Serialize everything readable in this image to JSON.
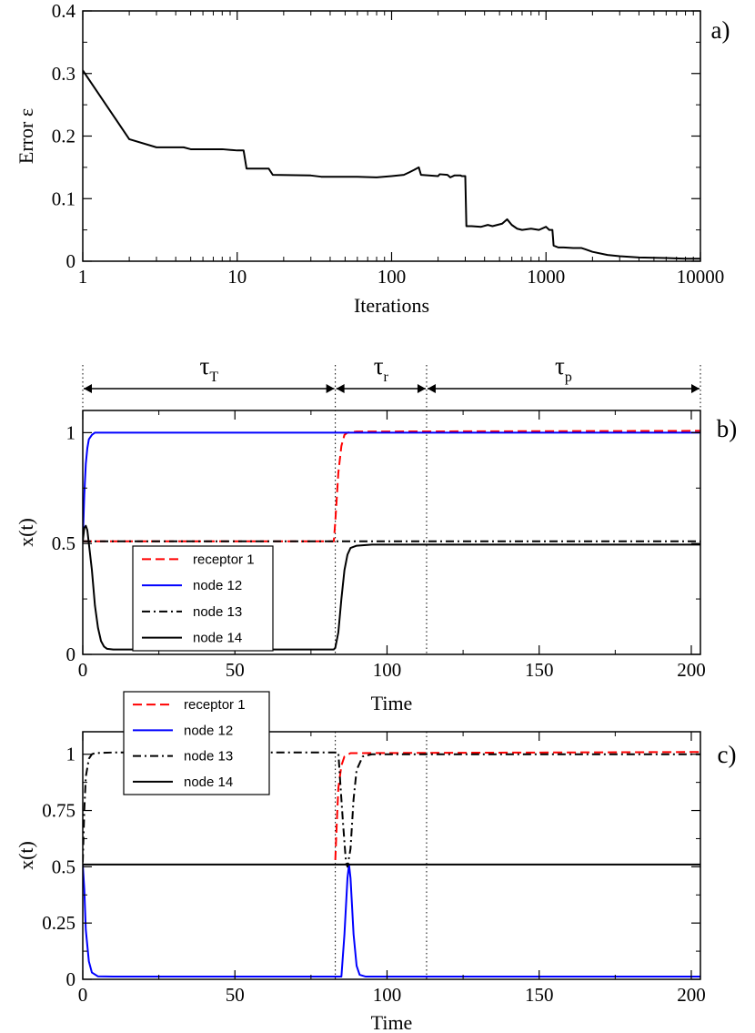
{
  "chart_data": [
    {
      "id": "a",
      "type": "line",
      "panel_label": "a)",
      "xscale": "log",
      "xlim": [
        1,
        10000
      ],
      "ylim": [
        0,
        0.4
      ],
      "xlabel": "Iterations",
      "ylabel": "Error ε",
      "xticks": [
        1,
        10,
        100,
        1000,
        10000
      ],
      "xtick_labels": [
        "1",
        "10",
        "100",
        "1000",
        "10000"
      ],
      "yticks": [
        0,
        0.1,
        0.2,
        0.3,
        0.4
      ],
      "ytick_labels": [
        "0",
        "0.1",
        "0.2",
        "0.3",
        "0.4"
      ],
      "series": [
        {
          "name": "error",
          "color": "#000000",
          "dash": "solid",
          "points": [
            [
              1,
              0.305
            ],
            [
              2,
              0.195
            ],
            [
              3,
              0.182
            ],
            [
              4.5,
              0.182
            ],
            [
              5,
              0.179
            ],
            [
              8,
              0.179
            ],
            [
              10,
              0.177
            ],
            [
              11,
              0.177
            ],
            [
              11.5,
              0.148
            ],
            [
              16,
              0.148
            ],
            [
              17,
              0.138
            ],
            [
              30,
              0.137
            ],
            [
              35,
              0.135
            ],
            [
              60,
              0.135
            ],
            [
              80,
              0.134
            ],
            [
              100,
              0.136
            ],
            [
              120,
              0.138
            ],
            [
              130,
              0.142
            ],
            [
              140,
              0.146
            ],
            [
              150,
              0.15
            ],
            [
              155,
              0.138
            ],
            [
              200,
              0.136
            ],
            [
              205,
              0.139
            ],
            [
              230,
              0.138
            ],
            [
              240,
              0.134
            ],
            [
              255,
              0.137
            ],
            [
              280,
              0.137
            ],
            [
              285,
              0.136
            ],
            [
              300,
              0.136
            ],
            [
              305,
              0.056
            ],
            [
              330,
              0.056
            ],
            [
              380,
              0.055
            ],
            [
              420,
              0.058
            ],
            [
              450,
              0.056
            ],
            [
              520,
              0.06
            ],
            [
              560,
              0.067
            ],
            [
              600,
              0.058
            ],
            [
              650,
              0.052
            ],
            [
              700,
              0.05
            ],
            [
              800,
              0.052
            ],
            [
              900,
              0.05
            ],
            [
              1000,
              0.055
            ],
            [
              1050,
              0.05
            ],
            [
              1100,
              0.05
            ],
            [
              1120,
              0.025
            ],
            [
              1200,
              0.022
            ],
            [
              1300,
              0.022
            ],
            [
              1500,
              0.021
            ],
            [
              1700,
              0.021
            ],
            [
              1800,
              0.019
            ],
            [
              2000,
              0.015
            ],
            [
              2500,
              0.01
            ],
            [
              3000,
              0.008
            ],
            [
              4000,
              0.006
            ],
            [
              6000,
              0.005
            ],
            [
              8000,
              0.004
            ],
            [
              10000,
              0.004
            ]
          ]
        }
      ]
    },
    {
      "id": "b",
      "type": "line",
      "panel_label": "b)",
      "xlim": [
        0,
        203
      ],
      "ylim": [
        0,
        1.1
      ],
      "xlabel": "Time",
      "ylabel": "x(t)",
      "xticks": [
        0,
        50,
        100,
        150,
        200
      ],
      "xtick_labels": [
        "0",
        "50",
        "100",
        "150",
        "200"
      ],
      "yticks": [
        0,
        0.5,
        1
      ],
      "ytick_labels": [
        "0",
        "0.5",
        "1"
      ],
      "vlines": [
        0,
        83,
        113,
        203
      ],
      "periods": [
        {
          "from": 0,
          "to": 83,
          "symbol": "τ",
          "sub": "T"
        },
        {
          "from": 83,
          "to": 113,
          "symbol": "τ",
          "sub": "r"
        },
        {
          "from": 113,
          "to": 203,
          "symbol": "τ",
          "sub": "p"
        }
      ],
      "legend": [
        "receptor 1",
        "node 12",
        "node 13",
        "node 14"
      ],
      "series": [
        {
          "name": "receptor 1",
          "color": "#ff0000",
          "dash": "dashed",
          "points": [
            [
              0,
              0.51
            ],
            [
              82.5,
              0.51
            ],
            [
              83,
              0.6
            ],
            [
              84,
              0.82
            ],
            [
              85,
              0.94
            ],
            [
              86,
              0.99
            ],
            [
              87,
              1.0
            ],
            [
              90,
              1.005
            ],
            [
              203,
              1.008
            ]
          ]
        },
        {
          "name": "node 12",
          "color": "#0000ff",
          "dash": "solid",
          "points": [
            [
              0,
              0.51
            ],
            [
              0.5,
              0.72
            ],
            [
              1,
              0.86
            ],
            [
              1.5,
              0.93
            ],
            [
              2,
              0.97
            ],
            [
              3,
              0.99
            ],
            [
              4,
              1.0
            ],
            [
              10,
              1.0
            ],
            [
              203,
              1.0
            ]
          ]
        },
        {
          "name": "node 13",
          "color": "#000000",
          "dash": "dashdot",
          "points": [
            [
              0,
              0.51
            ],
            [
              203,
              0.51
            ]
          ]
        },
        {
          "name": "node 14",
          "color": "#000000",
          "dash": "solid",
          "points": [
            [
              0,
              0.51
            ],
            [
              0.5,
              0.57
            ],
            [
              1,
              0.58
            ],
            [
              1.5,
              0.56
            ],
            [
              2,
              0.5
            ],
            [
              3,
              0.38
            ],
            [
              4,
              0.22
            ],
            [
              5,
              0.12
            ],
            [
              6,
              0.06
            ],
            [
              7,
              0.035
            ],
            [
              8,
              0.025
            ],
            [
              10,
              0.022
            ],
            [
              82.5,
              0.022
            ],
            [
              83,
              0.03
            ],
            [
              84,
              0.1
            ],
            [
              85,
              0.25
            ],
            [
              86,
              0.38
            ],
            [
              87,
              0.45
            ],
            [
              88,
              0.48
            ],
            [
              90,
              0.49
            ],
            [
              95,
              0.495
            ],
            [
              203,
              0.495
            ]
          ]
        }
      ]
    },
    {
      "id": "c",
      "type": "line",
      "panel_label": "c)",
      "xlim": [
        0,
        203
      ],
      "ylim": [
        0,
        1.1
      ],
      "xlabel": "Time",
      "ylabel": "x(t)",
      "xticks": [
        0,
        50,
        100,
        150,
        200
      ],
      "xtick_labels": [
        "0",
        "50",
        "100",
        "150",
        "200"
      ],
      "yticks": [
        0,
        0.25,
        0.5,
        0.75,
        1
      ],
      "ytick_labels": [
        "0",
        "0.25",
        "0.5",
        "0.75",
        "1"
      ],
      "vlines": [
        83,
        113
      ],
      "legend": [
        "receptor 1",
        "node 12",
        "node 13",
        "node 14"
      ],
      "series": [
        {
          "name": "receptor 1",
          "color": "#ff0000",
          "dash": "dashed",
          "points": [
            [
              83,
              0.53
            ],
            [
              83.5,
              0.7
            ],
            [
              84,
              0.85
            ],
            [
              85,
              0.95
            ],
            [
              86,
              0.99
            ],
            [
              88,
              1.005
            ],
            [
              203,
              1.01
            ]
          ]
        },
        {
          "name": "node 12",
          "color": "#0000ff",
          "dash": "solid",
          "points": [
            [
              0,
              0.51
            ],
            [
              0.5,
              0.4
            ],
            [
              1,
              0.22
            ],
            [
              2,
              0.08
            ],
            [
              3,
              0.03
            ],
            [
              5,
              0.013
            ],
            [
              10,
              0.012
            ],
            [
              85,
              0.012
            ],
            [
              86,
              0.2
            ],
            [
              87,
              0.45
            ],
            [
              87.5,
              0.51
            ],
            [
              88,
              0.45
            ],
            [
              89,
              0.2
            ],
            [
              90,
              0.06
            ],
            [
              91,
              0.02
            ],
            [
              93,
              0.012
            ],
            [
              203,
              0.012
            ]
          ]
        },
        {
          "name": "node 13",
          "color": "#000000",
          "dash": "dashdot",
          "points": [
            [
              0,
              0.52
            ],
            [
              0.5,
              0.75
            ],
            [
              1,
              0.9
            ],
            [
              2,
              0.98
            ],
            [
              3,
              1.0
            ],
            [
              4,
              1.005
            ],
            [
              10,
              1.008
            ],
            [
              84,
              1.008
            ],
            [
              84.5,
              0.9
            ],
            [
              85.5,
              0.7
            ],
            [
              86.5,
              0.52
            ],
            [
              87,
              0.5
            ],
            [
              88,
              0.58
            ],
            [
              89,
              0.8
            ],
            [
              90,
              0.93
            ],
            [
              92,
              0.99
            ],
            [
              95,
              1.0
            ],
            [
              203,
              1.0
            ]
          ]
        },
        {
          "name": "node 14",
          "color": "#000000",
          "dash": "solid",
          "points": [
            [
              0,
              0.51
            ],
            [
              203,
              0.51
            ]
          ]
        }
      ]
    }
  ]
}
